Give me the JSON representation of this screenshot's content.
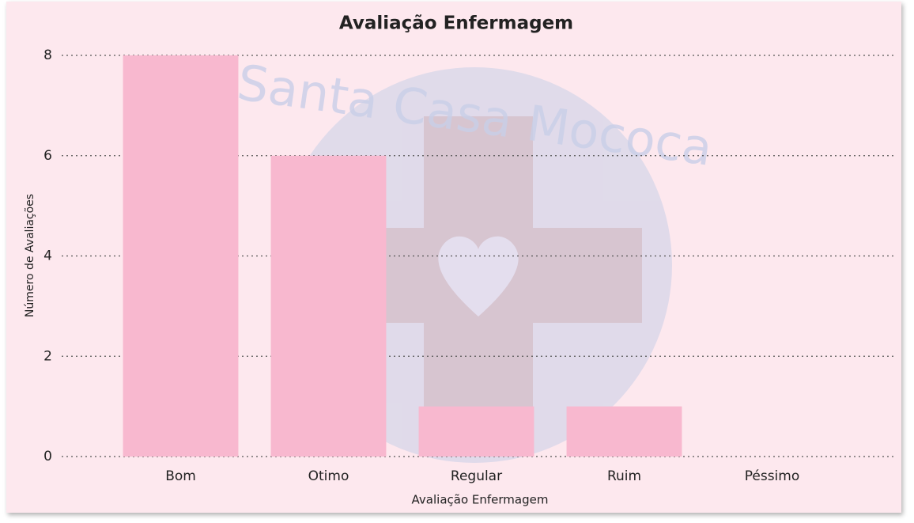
{
  "chart_data": {
    "type": "bar",
    "title": "Avaliação Enfermagem",
    "x_label": "Avaliação Enfermagem",
    "y_label": "Número de Avaliações",
    "watermark": "Santa Casa Mococa",
    "categories": [
      "Bom",
      "Otimo",
      "Regular",
      "Ruim",
      "Péssimo"
    ],
    "values": [
      8,
      6,
      1,
      1,
      0
    ],
    "color": "#f8b8cf",
    "ylim": [
      0,
      8
    ],
    "yticks": [
      0,
      2,
      4,
      6,
      8
    ],
    "grid": true
  }
}
